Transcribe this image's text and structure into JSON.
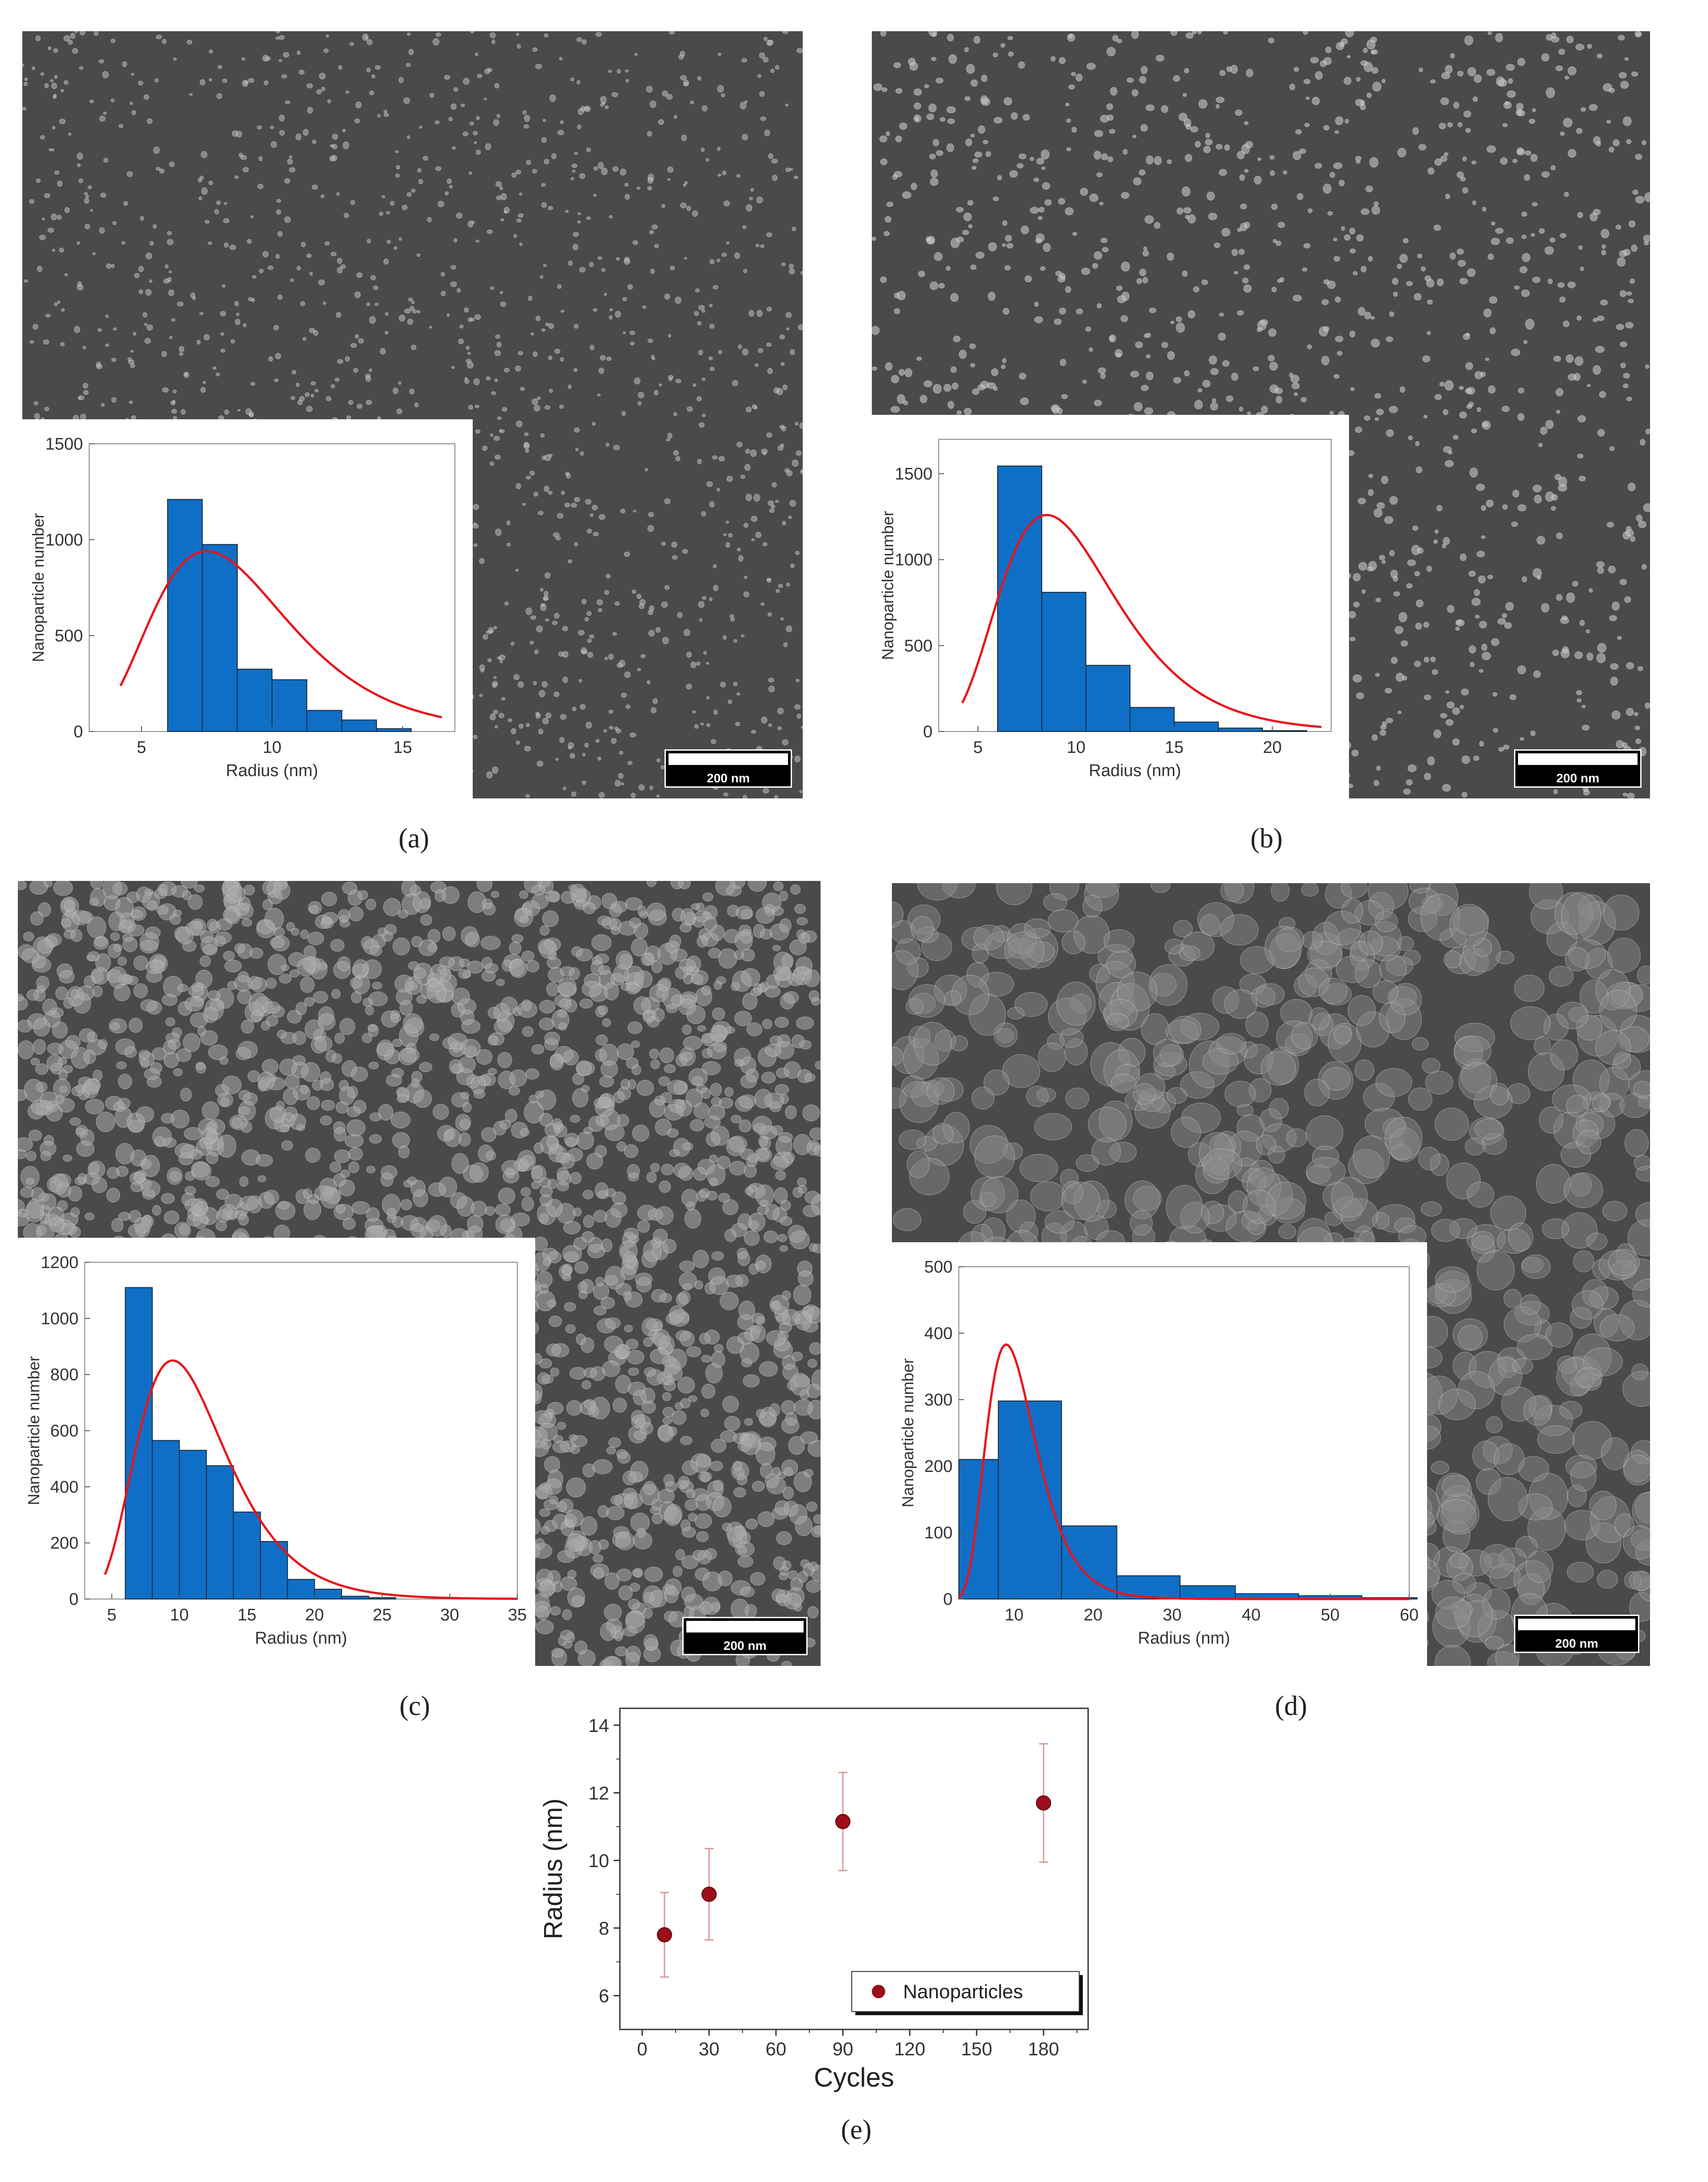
{
  "panels": [
    {
      "id": "a",
      "caption": "(a)",
      "scale_bar": "200 nm",
      "texture": "sparse-small",
      "chart_data": {
        "type": "bar",
        "bin_edges": [
          6,
          7.33,
          8.67,
          10,
          11.33,
          12.67,
          14,
          15.33
        ],
        "values": [
          1210,
          975,
          325,
          270,
          110,
          60,
          15
        ],
        "fit_curve": {
          "type": "lognormal",
          "peak_x": 7.5,
          "peak_y": 940,
          "x_start": 4.2,
          "x_end": 16.5
        },
        "xlabel": "Radius (nm)",
        "ylabel": "Nanoparticle number",
        "xlim": [
          3,
          17
        ],
        "ylim": [
          0,
          1500
        ],
        "xticks": [
          5,
          10,
          15
        ],
        "yticks": [
          0,
          500,
          1000,
          1500
        ],
        "bar_color": "#0f6fc6",
        "curve_color": "#e8141c"
      }
    },
    {
      "id": "b",
      "caption": "(b)",
      "scale_bar": "200 nm",
      "texture": "sparse-medium",
      "chart_data": {
        "type": "bar",
        "bin_edges": [
          6,
          8.25,
          10.5,
          12.75,
          15,
          17.25,
          19.5,
          21.75
        ],
        "values": [
          1545,
          810,
          385,
          140,
          55,
          20,
          5
        ],
        "fit_curve": {
          "type": "lognormal",
          "peak_x": 8.5,
          "peak_y": 1260,
          "x_start": 4.2,
          "x_end": 22.5
        },
        "xlabel": "Radius (nm)",
        "ylabel": "Nanoparticle number",
        "xlim": [
          3,
          23
        ],
        "ylim": [
          0,
          1700
        ],
        "xticks": [
          5,
          10,
          15,
          20
        ],
        "yticks": [
          0,
          500,
          1000,
          1500
        ],
        "bar_color": "#0f6fc6",
        "curve_color": "#e8141c"
      }
    },
    {
      "id": "c",
      "caption": "(c)",
      "scale_bar": "200 nm",
      "texture": "dense-grains",
      "chart_data": {
        "type": "bar",
        "bin_edges": [
          6,
          8,
          10,
          12,
          14,
          16,
          18,
          20,
          22,
          24,
          26
        ],
        "values": [
          1110,
          565,
          530,
          475,
          310,
          205,
          70,
          35,
          10,
          5
        ],
        "fit_curve": {
          "type": "lognormal",
          "peak_x": 9.5,
          "peak_y": 850,
          "x_start": 4.5,
          "x_end": 35
        },
        "xlabel": "Radius (nm)",
        "ylabel": "Nanoparticle number",
        "xlim": [
          3,
          35
        ],
        "ylim": [
          0,
          1200
        ],
        "xticks": [
          5,
          10,
          15,
          20,
          25,
          30,
          35
        ],
        "yticks": [
          0,
          200,
          400,
          600,
          800,
          1000,
          1200
        ],
        "bar_color": "#0f6fc6",
        "curve_color": "#e8141c"
      }
    },
    {
      "id": "d",
      "caption": "(d)",
      "scale_bar": "200 nm",
      "texture": "coalesced",
      "chart_data": {
        "type": "bar",
        "bin_edges": [
          3,
          8,
          16,
          23,
          31,
          38,
          46,
          54,
          61
        ],
        "values": [
          210,
          298,
          110,
          35,
          20,
          8,
          5,
          2
        ],
        "fit_curve": {
          "type": "lognormal",
          "peak_x": 9,
          "peak_y": 383,
          "x_start": 3,
          "x_end": 60
        },
        "xlabel": "Radius (nm)",
        "ylabel": "Nanoparticle number",
        "xlim": [
          3,
          60
        ],
        "ylim": [
          0,
          500
        ],
        "xticks": [
          10,
          20,
          30,
          40,
          50,
          60
        ],
        "yticks": [
          0,
          100,
          200,
          300,
          400,
          500
        ],
        "bar_color": "#0f6fc6",
        "curve_color": "#e8141c"
      }
    }
  ],
  "panel_e": {
    "caption": "(e)",
    "chart_data": {
      "type": "scatter",
      "x": [
        10,
        30,
        90,
        180
      ],
      "y": [
        7.8,
        9.0,
        11.15,
        11.7
      ],
      "err_low": [
        6.55,
        7.65,
        9.7,
        9.95
      ],
      "err_high": [
        9.05,
        10.35,
        12.6,
        13.45
      ],
      "xlabel": "Cycles",
      "ylabel": "Radius (nm)",
      "xlim": [
        -10,
        200
      ],
      "ylim": [
        5,
        14.5
      ],
      "xticks": [
        0,
        30,
        60,
        90,
        120,
        150,
        180
      ],
      "yticks": [
        6,
        8,
        10,
        12,
        14
      ],
      "legend": "Nanoparticles",
      "legend_position": "bottom-right",
      "marker_color": "#9b0d1a",
      "errorbar_color": "#d89a9a"
    }
  }
}
